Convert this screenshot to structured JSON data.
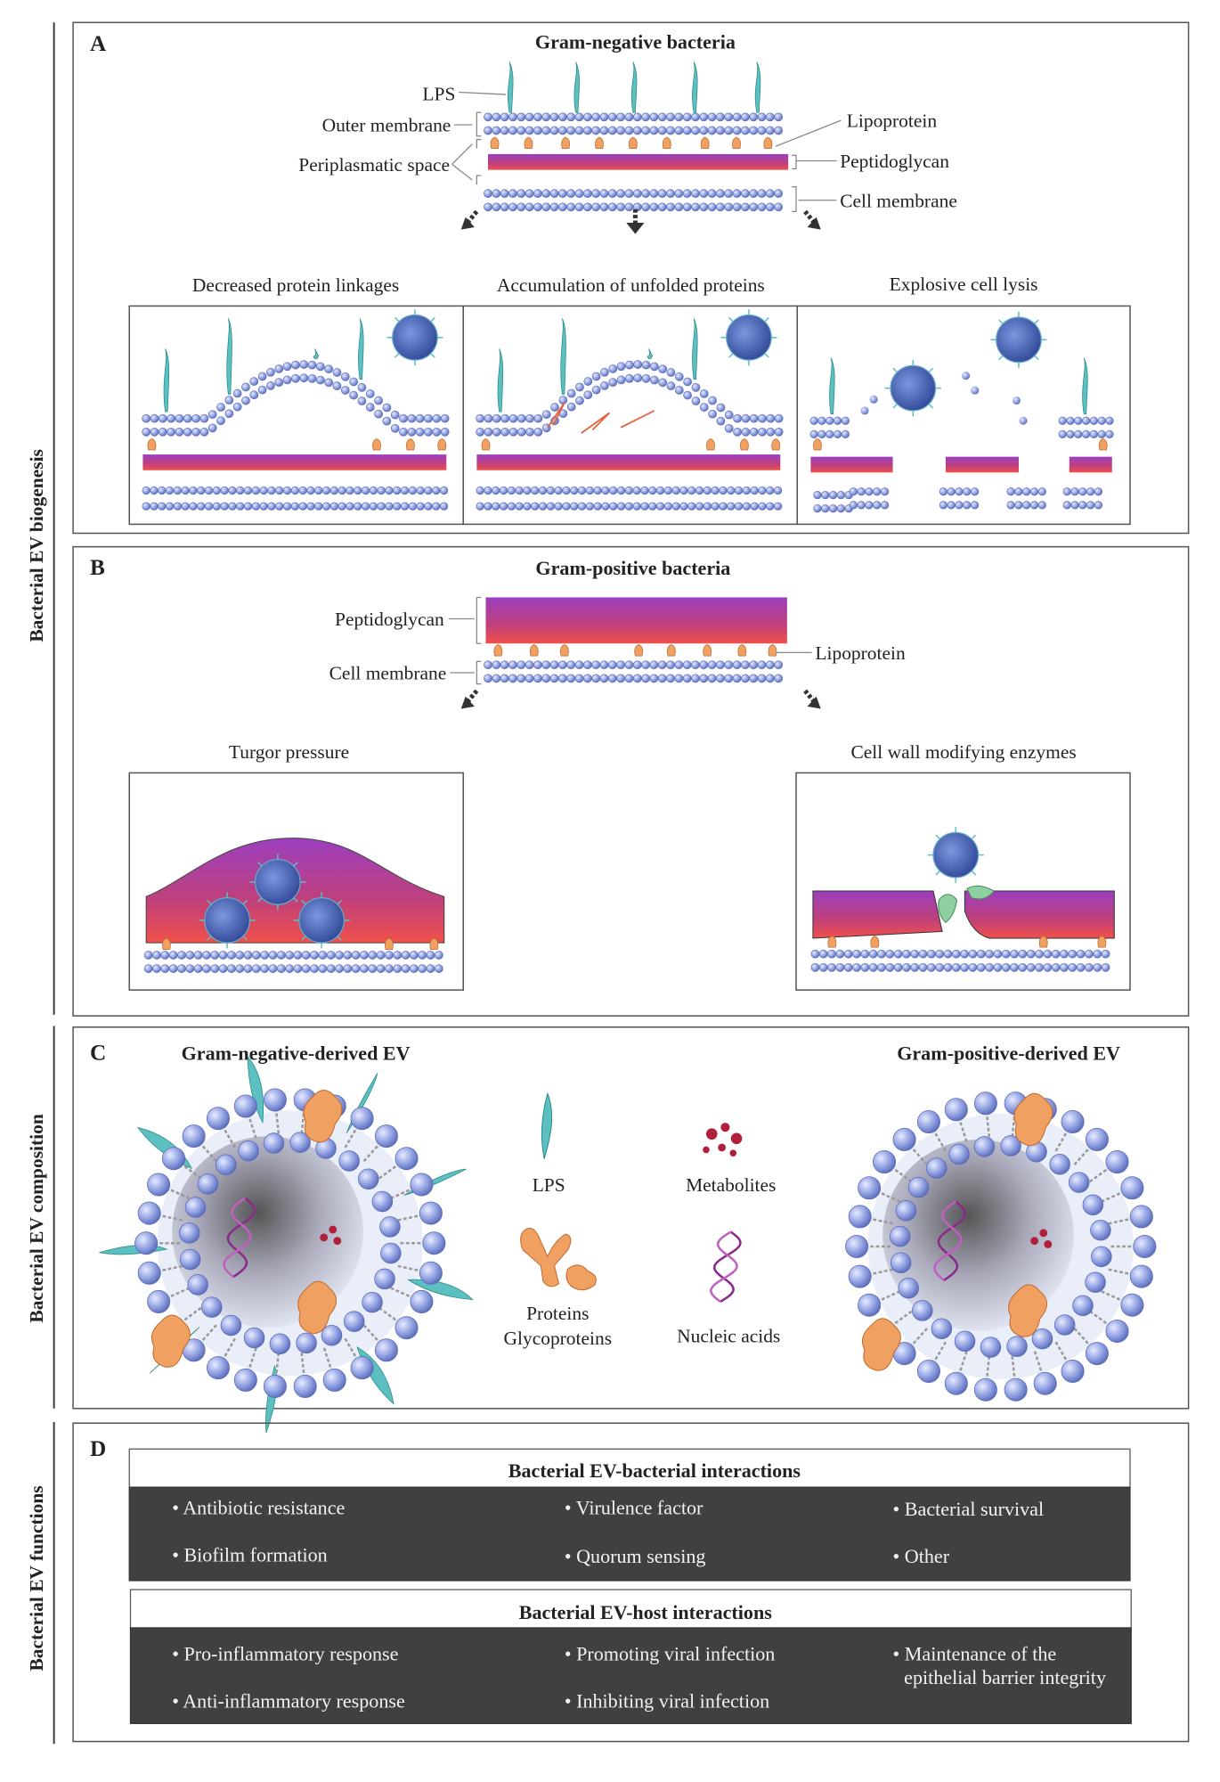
{
  "colors": {
    "membrane": "#7f8fd6",
    "lps": "#5cbfc0",
    "lipoprotein": "#f0a060",
    "peptidoglycan_top": "#9b3fbf",
    "peptidoglycan_bottom": "#f0504a",
    "ev": "#3d5fb0",
    "dark_box": "#404040",
    "dna": "#8a2a8a",
    "metabolite": "#b0203a"
  },
  "side_labels": {
    "biogenesis": "Bacterial EV biogenesis",
    "composition": "Bacterial EV composition",
    "functions": "Bacterial EV functions"
  },
  "panel_a": {
    "letter": "A",
    "title": "Gram-negative bacteria",
    "labels": {
      "lps": "LPS",
      "outer_membrane": "Outer membrane",
      "periplasmatic_space": "Periplasmatic space",
      "lipoprotein": "Lipoprotein",
      "peptidoglycan": "Peptidoglycan",
      "cell_membrane": "Cell membrane"
    },
    "mechanisms": [
      "Decreased protein linkages",
      "Accumulation of unfolded proteins",
      "Explosive cell lysis"
    ]
  },
  "panel_b": {
    "letter": "B",
    "title": "Gram-positive bacteria",
    "labels": {
      "peptidoglycan": "Peptidoglycan",
      "cell_membrane": "Cell membrane",
      "lipoprotein": "Lipoprotein"
    },
    "mechanisms": [
      "Turgor pressure",
      "Cell wall modifying enzymes"
    ]
  },
  "panel_c": {
    "letter": "C",
    "gram_negative_ev": "Gram-negative-derived EV",
    "gram_positive_ev": "Gram-positive-derived EV",
    "legend": {
      "lps": "LPS",
      "metabolites": "Metabolites",
      "proteins": "Proteins",
      "glycoproteins": "Glycoproteins",
      "nucleic_acids": "Nucleic acids"
    }
  },
  "panel_d": {
    "letter": "D",
    "bacterial": {
      "title": "Bacterial EV-bacterial interactions",
      "items": [
        "• Antibiotic resistance",
        "• Virulence factor",
        "• Bacterial survival",
        "• Biofilm formation",
        "• Quorum sensing",
        "• Other"
      ]
    },
    "host": {
      "title": "Bacterial EV-host interactions",
      "items": [
        "• Pro-inflammatory response",
        "• Promoting viral infection",
        "• Maintenance of the",
        "epithelial barrier integrity",
        "• Anti-inflammatory response",
        "• Inhibiting viral infection"
      ]
    }
  }
}
